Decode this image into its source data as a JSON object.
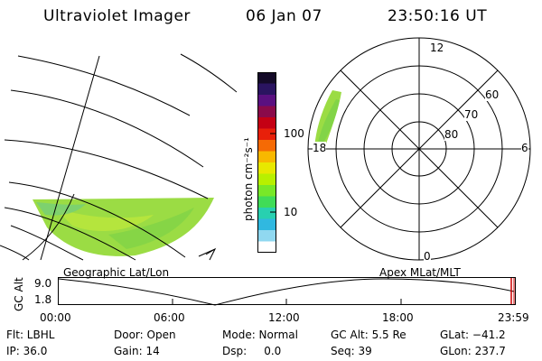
{
  "header": {
    "instrument": "Ultraviolet Imager",
    "date": "06 Jan 07",
    "time": "23:50:16 UT"
  },
  "geo_panel": {
    "caption": "Geographic Lat/Lon"
  },
  "colorbar": {
    "label": "photon cm⁻²s⁻¹",
    "ticks": [
      "100",
      "10"
    ],
    "colors": [
      "#140a28",
      "#2a1460",
      "#5a1080",
      "#8a0a4a",
      "#c40014",
      "#e8200a",
      "#f56a05",
      "#f8b800",
      "#e8e800",
      "#b8f000",
      "#78e828",
      "#40dc58",
      "#28d0b0",
      "#30b8e0",
      "#90d8f0",
      "#ffffff"
    ]
  },
  "polar": {
    "caption": "Apex MLat/MLT",
    "mlt_labels": {
      "top": "12",
      "right": "6",
      "bottom": "0",
      "left": "18"
    },
    "lat_labels": [
      "60",
      "70",
      "80"
    ]
  },
  "altitude_plot": {
    "axis_label": "GC Alt",
    "y_ticks": [
      "9.0",
      "1.8"
    ],
    "x_ticks": [
      "00:00",
      "06:00",
      "12:00",
      "18:00",
      "23:59"
    ],
    "marker_color": "#cc0000"
  },
  "info": {
    "flt": "Flt: LBHL",
    "door": "Door: Open",
    "mode": "Mode: Normal",
    "gc_alt": "GC Alt: 5.5 Re",
    "glat": "GLat: −41.2",
    "ip": "IP: 36.0",
    "gain": "Gain: 14",
    "dsp": "Dsp:     0.0",
    "seq": "Seq: 39",
    "glon": "GLon: 237.7"
  }
}
